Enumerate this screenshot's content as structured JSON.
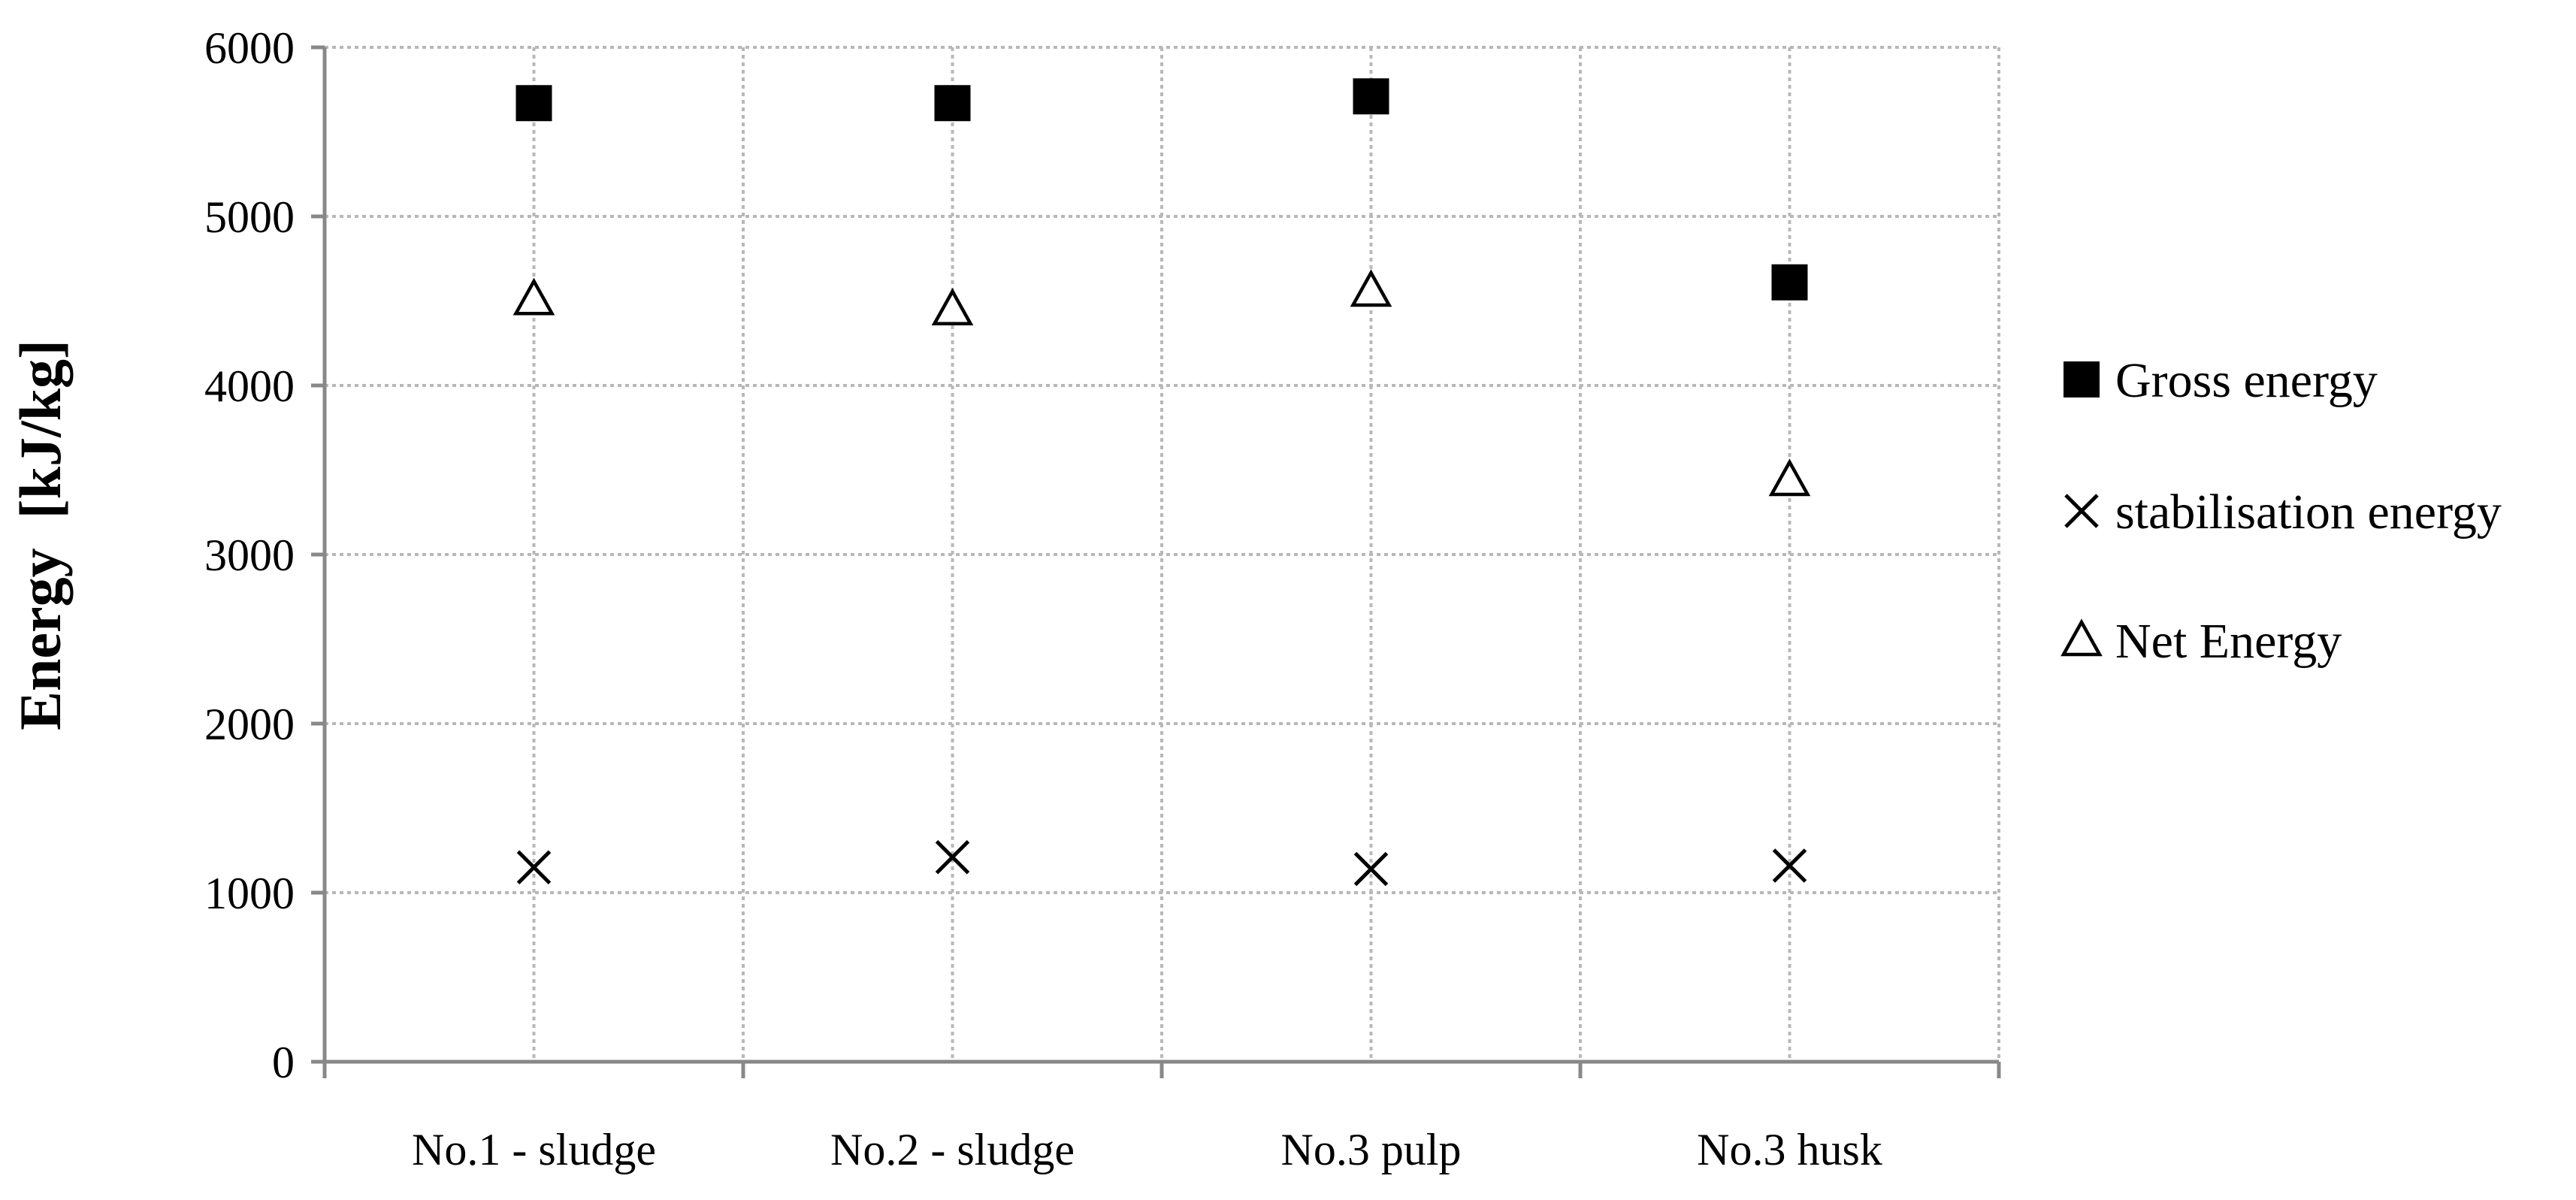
{
  "chart_data": {
    "type": "scatter",
    "title": "",
    "xlabel": "",
    "ylabel": "Energy  [kJ/kg]",
    "ylim": [
      0,
      6000
    ],
    "yticks": [
      0,
      1000,
      2000,
      3000,
      4000,
      5000,
      6000
    ],
    "grid": true,
    "legend_position": "right",
    "categories": [
      "No.1 - sludge",
      "No.2 - sludge",
      "No.3 pulp",
      "No.3 husk"
    ],
    "series": [
      {
        "name": "Gross energy",
        "marker": "filled-square",
        "color": "#000000",
        "values": [
          5670,
          5670,
          5710,
          4610
        ]
      },
      {
        "name": "stabilisation energy",
        "marker": "x",
        "color": "#000000",
        "values": [
          1150,
          1210,
          1140,
          1160
        ]
      },
      {
        "name": "Net Energy",
        "marker": "open-triangle",
        "color": "#000000",
        "values": [
          4510,
          4450,
          4560,
          3440
        ]
      }
    ]
  }
}
